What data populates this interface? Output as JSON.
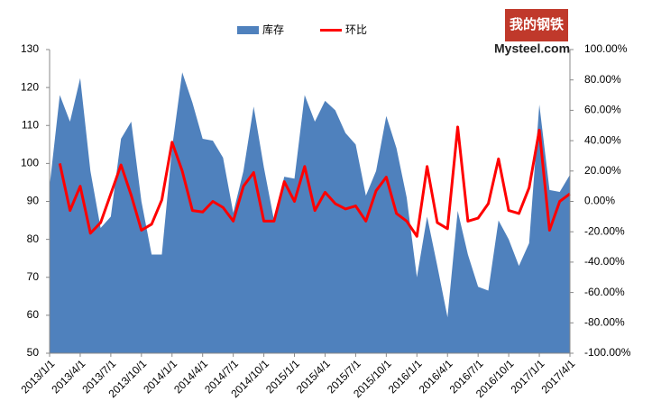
{
  "chart_data": {
    "type": "area-line",
    "logo": {
      "cn": "我的钢铁",
      "en": "Mysteel.com"
    },
    "categories": [
      "2013/1/1",
      null,
      null,
      "2013/4/1",
      null,
      null,
      "2013/7/1",
      null,
      null,
      "2013/10/1",
      null,
      null,
      "2014/1/1",
      null,
      null,
      "2014/4/1",
      null,
      null,
      "2014/7/1",
      null,
      null,
      "2014/10/1",
      null,
      null,
      "2015/1/1",
      null,
      null,
      "2015/4/1",
      null,
      null,
      "2015/7/1",
      null,
      null,
      "2015/10/1",
      null,
      null,
      "2016/1/1",
      null,
      null,
      "2016/4/1",
      null,
      null,
      "2016/7/1",
      null,
      null,
      "2016/10/1",
      null,
      null,
      "2017/1/1",
      null,
      null,
      "2017/4/1"
    ],
    "series": [
      {
        "name": "库存",
        "type": "area",
        "color": "#4f81bd",
        "values": [
          94,
          118,
          111,
          122.5,
          98,
          83,
          86,
          106.5,
          111,
          90,
          76,
          76,
          104,
          124,
          116,
          106.5,
          106,
          101.5,
          87,
          98,
          115,
          99,
          85,
          96.5,
          96,
          118,
          111,
          116.5,
          114,
          108,
          105,
          91.5,
          98,
          112.5,
          104,
          91,
          70,
          86,
          73,
          59.5,
          87.5,
          76,
          67.5,
          66.5,
          85,
          80,
          73,
          79,
          115.5,
          93,
          92.5,
          97
        ]
      },
      {
        "name": "环比",
        "type": "line",
        "color": "#ff0000",
        "axis": "y2",
        "values": [
          null,
          25,
          -6,
          10,
          -21,
          -14,
          5,
          24,
          4,
          -19,
          -15,
          1,
          39,
          20,
          -6,
          -7,
          0,
          -4,
          -13,
          10,
          19,
          -13,
          -13,
          13,
          0,
          23,
          -6,
          6,
          -1.5,
          -5,
          -3,
          -13,
          7,
          16,
          -8,
          -13,
          -23,
          23,
          -14,
          -18,
          49,
          -13,
          -11,
          -1.5,
          28,
          -6,
          -8,
          9,
          47,
          -19,
          0,
          5
        ]
      }
    ],
    "ylim": [
      50,
      130
    ],
    "yticks": [
      50,
      60,
      70,
      80,
      90,
      100,
      110,
      120,
      130
    ],
    "y2lim": [
      -100,
      100
    ],
    "y2ticks": [
      {
        "value": -100,
        "label": "-100.00%"
      },
      {
        "value": -80,
        "label": "-80.00%"
      },
      {
        "value": -60,
        "label": "-60.00%"
      },
      {
        "value": -40,
        "label": "-40.00%"
      },
      {
        "value": -20,
        "label": "-20.00%"
      },
      {
        "value": 0,
        "label": "0.00%"
      },
      {
        "value": 20,
        "label": "20.00%"
      },
      {
        "value": 40,
        "label": "40.00%"
      },
      {
        "value": 60,
        "label": "60.00%"
      },
      {
        "value": 80,
        "label": "80.00%"
      },
      {
        "value": 100,
        "label": "100.00%"
      }
    ],
    "legend": "top"
  }
}
